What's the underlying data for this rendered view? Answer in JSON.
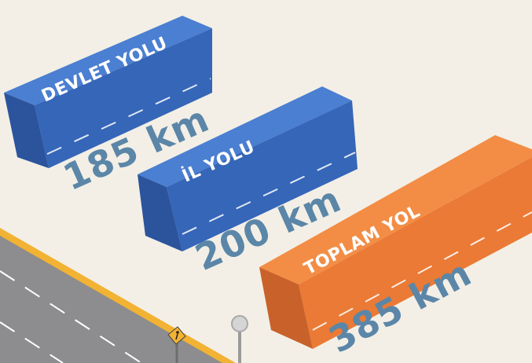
{
  "blocks": [
    {
      "label": "DEVLET YOLU",
      "distance": "185 km",
      "color_top": "#4a7fd1",
      "color_front": "#3566b8",
      "color_side": "#2b549d"
    },
    {
      "label": "İL YOLU",
      "distance": "200 km",
      "color_top": "#4a7fd1",
      "color_front": "#3566b8",
      "color_side": "#2b549d"
    },
    {
      "label": "TOPLAM YOL",
      "distance": "385 km",
      "color_top": "#f38d45",
      "color_front": "#ea7a35",
      "color_side": "#c9612a"
    }
  ],
  "colors": {
    "background": "#f3efe6",
    "distance_text": "#5b86a8",
    "road": "#8d8d8f",
    "road_edge": "#f2b233",
    "dash": "#ffffff"
  },
  "icons": [
    "pedestrian-sign-icon",
    "road-sign-post-icon"
  ]
}
